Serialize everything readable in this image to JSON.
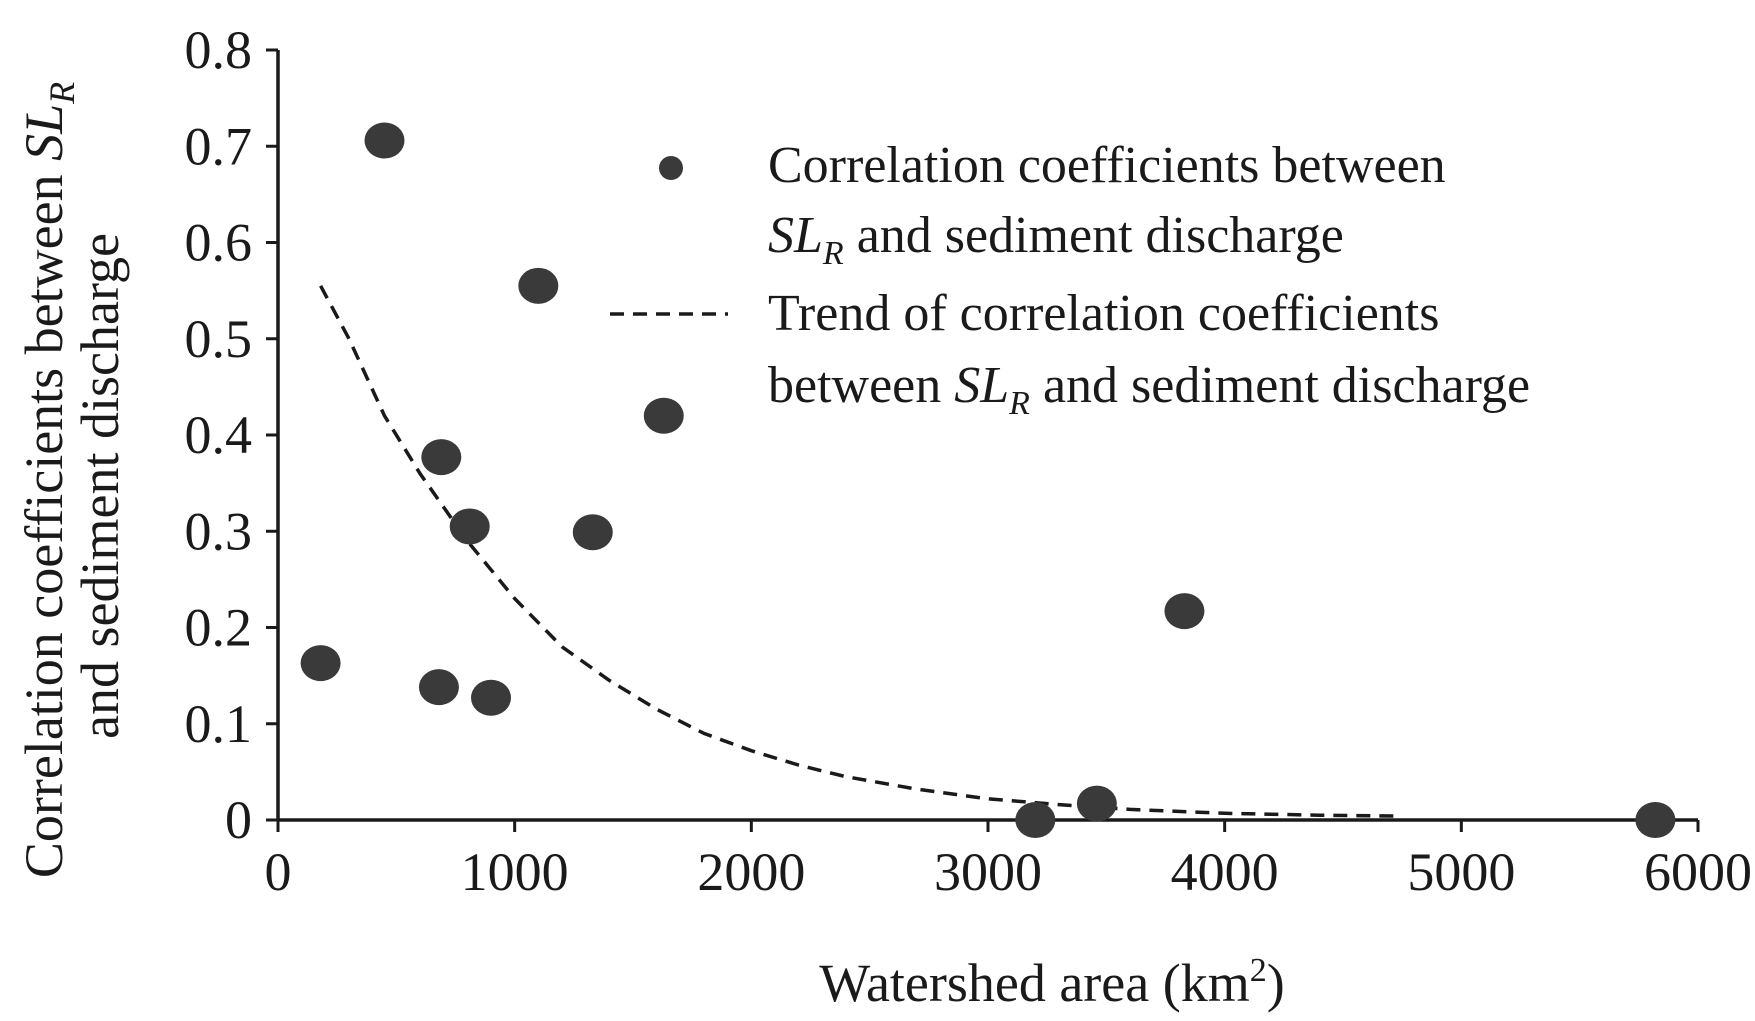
{
  "chart_data": {
    "type": "scatter",
    "xlabel_main": "Watershed area (km",
    "xlabel_sup": "2",
    "xlabel_end": ")",
    "ylabel_line1_main": "Correlation coefficients between ",
    "ylabel_line1_sl": "SL",
    "ylabel_line1_sub": "R",
    "ylabel_line2": "and sediment discharge",
    "xlim": [
      0,
      6000
    ],
    "ylim": [
      0,
      0.8
    ],
    "x_ticks": [
      "0",
      "1000",
      "2000",
      "3000",
      "4000",
      "5000",
      "6000"
    ],
    "y_ticks": [
      "0",
      "0.1",
      "0.2",
      "0.3",
      "0.4",
      "0.5",
      "0.6",
      "0.7",
      "0.8"
    ],
    "point_color": "#3a3a3a",
    "trend_color": "#1a1a1a",
    "series": [
      {
        "name": "Correlation coefficients between SLR and sediment discharge",
        "legend_line1": "Correlation coefficients between",
        "legend_line2_sl": "SL",
        "legend_line2_sub": "R",
        "legend_line2_rest": " and sediment discharge",
        "style": "markers",
        "points": [
          {
            "x": 180,
            "y": 0.163
          },
          {
            "x": 450,
            "y": 0.706
          },
          {
            "x": 680,
            "y": 0.138
          },
          {
            "x": 690,
            "y": 0.377
          },
          {
            "x": 810,
            "y": 0.305
          },
          {
            "x": 900,
            "y": 0.127
          },
          {
            "x": 1100,
            "y": 0.555
          },
          {
            "x": 1330,
            "y": 0.299
          },
          {
            "x": 1630,
            "y": 0.42
          },
          {
            "x": 3200,
            "y": 0.0
          },
          {
            "x": 3460,
            "y": 0.017
          },
          {
            "x": 3830,
            "y": 0.217
          },
          {
            "x": 5820,
            "y": 0.0
          }
        ]
      },
      {
        "name": "Trend of correlation coefficients between SLR and sediment discharge",
        "legend_line1": "Trend of correlation coefficients",
        "legend_line2_pre": "between ",
        "legend_line2_sl": "SL",
        "legend_line2_sub": "R",
        "legend_line2_rest": " and sediment discharge",
        "style": "dashed-line",
        "points": [
          {
            "x": 180,
            "y": 0.555
          },
          {
            "x": 300,
            "y": 0.5
          },
          {
            "x": 450,
            "y": 0.42
          },
          {
            "x": 600,
            "y": 0.36
          },
          {
            "x": 800,
            "y": 0.29
          },
          {
            "x": 1000,
            "y": 0.23
          },
          {
            "x": 1200,
            "y": 0.18
          },
          {
            "x": 1400,
            "y": 0.145
          },
          {
            "x": 1600,
            "y": 0.115
          },
          {
            "x": 1800,
            "y": 0.09
          },
          {
            "x": 2000,
            "y": 0.072
          },
          {
            "x": 2200,
            "y": 0.057
          },
          {
            "x": 2400,
            "y": 0.045
          },
          {
            "x": 2700,
            "y": 0.032
          },
          {
            "x": 3000,
            "y": 0.022
          },
          {
            "x": 3300,
            "y": 0.016
          },
          {
            "x": 3600,
            "y": 0.011
          },
          {
            "x": 4000,
            "y": 0.007
          },
          {
            "x": 4400,
            "y": 0.005
          },
          {
            "x": 4750,
            "y": 0.004
          }
        ]
      }
    ],
    "legend_position": "top-right",
    "grid": false
  }
}
